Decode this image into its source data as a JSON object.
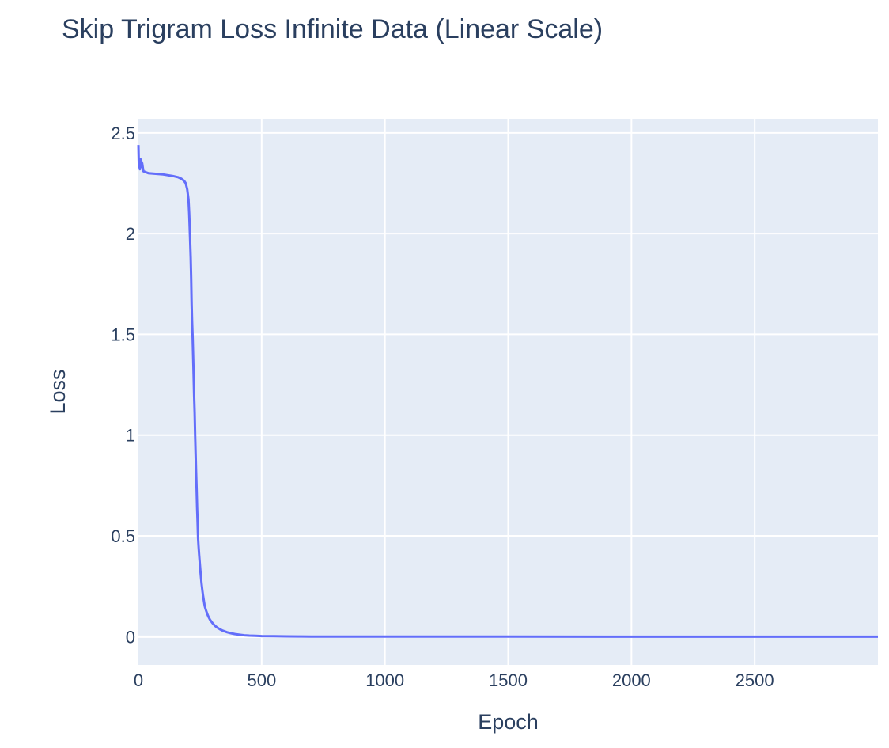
{
  "chart_data": {
    "type": "line",
    "title": "Skip Trigram Loss Infinite Data (Linear Scale)",
    "xlabel": "Epoch",
    "ylabel": "Loss",
    "xlim": [
      0,
      3000
    ],
    "ylim": [
      -0.14,
      2.57
    ],
    "x_ticks": [
      0,
      500,
      1000,
      1500,
      2000,
      2500
    ],
    "x_tick_labels": [
      "0",
      "500",
      "1000",
      "1500",
      "2000",
      "2500"
    ],
    "y_ticks": [
      0,
      0.5,
      1,
      1.5,
      2,
      2.5
    ],
    "y_tick_labels": [
      "0",
      "0.5",
      "1",
      "1.5",
      "2",
      "2.5"
    ],
    "grid": true,
    "series": [
      {
        "color": "#636efa",
        "x": [
          0,
          2,
          4,
          6,
          8,
          10,
          15,
          20,
          30,
          40,
          60,
          80,
          100,
          120,
          140,
          160,
          175,
          185,
          192,
          198,
          203,
          206,
          209,
          212,
          214,
          216,
          218,
          220,
          222,
          224,
          226,
          228,
          230,
          232,
          234,
          236,
          238,
          240,
          242,
          244,
          246,
          248,
          250,
          252,
          254,
          256,
          258,
          260,
          262,
          264,
          266,
          268,
          270,
          275,
          280,
          285,
          290,
          300,
          310,
          320,
          330,
          340,
          350,
          360,
          375,
          390,
          410,
          430,
          450,
          475,
          500,
          550,
          600,
          650,
          700,
          800,
          900,
          1000,
          1500,
          2000,
          2500,
          3000
        ],
        "y": [
          2.44,
          2.33,
          2.36,
          2.32,
          2.37,
          2.33,
          2.35,
          2.31,
          2.305,
          2.3,
          2.298,
          2.296,
          2.294,
          2.29,
          2.286,
          2.28,
          2.272,
          2.262,
          2.25,
          2.22,
          2.17,
          2.1,
          2.0,
          1.88,
          1.78,
          1.65,
          1.56,
          1.48,
          1.39,
          1.3,
          1.2,
          1.11,
          1.0,
          0.91,
          0.82,
          0.73,
          0.64,
          0.57,
          0.49,
          0.45,
          0.41,
          0.38,
          0.35,
          0.32,
          0.29,
          0.265,
          0.245,
          0.225,
          0.205,
          0.19,
          0.175,
          0.16,
          0.148,
          0.128,
          0.11,
          0.097,
          0.085,
          0.068,
          0.055,
          0.045,
          0.037,
          0.031,
          0.026,
          0.022,
          0.017,
          0.013,
          0.0095,
          0.007,
          0.0055,
          0.004,
          0.003,
          0.002,
          0.0013,
          0.0009,
          0.0006,
          0.0003,
          0.0002,
          0.0001,
          3e-05,
          1e-05,
          5e-06,
          3e-06
        ]
      }
    ]
  }
}
